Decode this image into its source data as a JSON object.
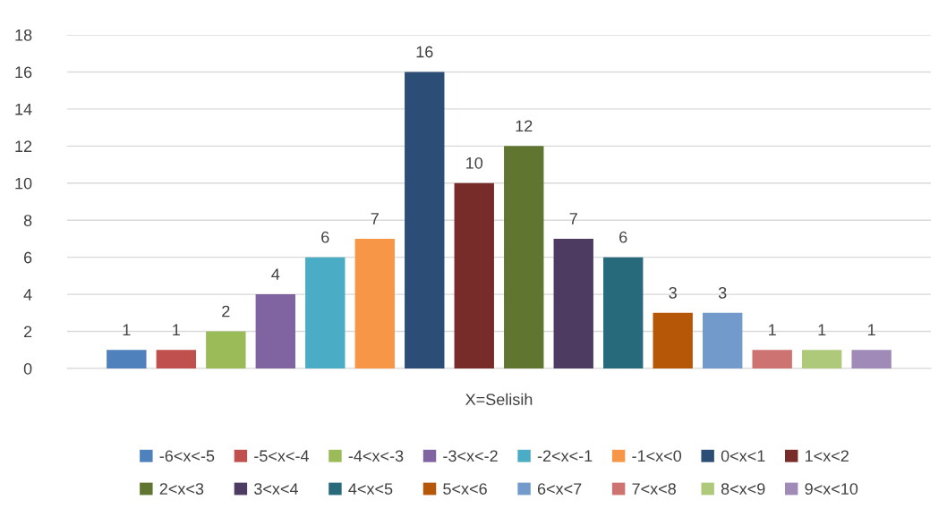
{
  "chart_data": {
    "type": "bar",
    "categories": [
      "X=Selisih"
    ],
    "series": [
      {
        "name": "-6<x<-5",
        "color": "#4f81bd",
        "values": [
          1
        ]
      },
      {
        "name": "-5<x<-4",
        "color": "#c0504d",
        "values": [
          1
        ]
      },
      {
        "name": "-4<x<-3",
        "color": "#9bbb59",
        "values": [
          2
        ]
      },
      {
        "name": "-3<x<-2",
        "color": "#8064a2",
        "values": [
          4
        ]
      },
      {
        "name": "-2<x<-1",
        "color": "#4bacc6",
        "values": [
          6
        ]
      },
      {
        "name": "-1<x<0",
        "color": "#f79646",
        "values": [
          7
        ]
      },
      {
        "name": "0<x<1",
        "color": "#2c4d75",
        "values": [
          16
        ]
      },
      {
        "name": "1<x<2",
        "color": "#772c2a",
        "values": [
          10
        ]
      },
      {
        "name": "2<x<3",
        "color": "#5f7530",
        "values": [
          12
        ]
      },
      {
        "name": "3<x<4",
        "color": "#4d3b62",
        "values": [
          7
        ]
      },
      {
        "name": "4<x<5",
        "color": "#276a7c",
        "values": [
          6
        ]
      },
      {
        "name": "5<x<6",
        "color": "#b65708",
        "values": [
          3
        ]
      },
      {
        "name": "6<x<7",
        "color": "#729aca",
        "values": [
          3
        ]
      },
      {
        "name": "7<x<8",
        "color": "#cd7371",
        "values": [
          1
        ]
      },
      {
        "name": "8<x<9",
        "color": "#afc97a",
        "values": [
          1
        ]
      },
      {
        "name": "9<x<10",
        "color": "#a08bb8",
        "values": [
          1
        ]
      }
    ],
    "ylim": [
      0,
      18
    ],
    "yticks": [
      0,
      2,
      4,
      6,
      8,
      10,
      12,
      14,
      16,
      18
    ],
    "grid": "y",
    "legend": "bottom",
    "data_labels": true
  }
}
